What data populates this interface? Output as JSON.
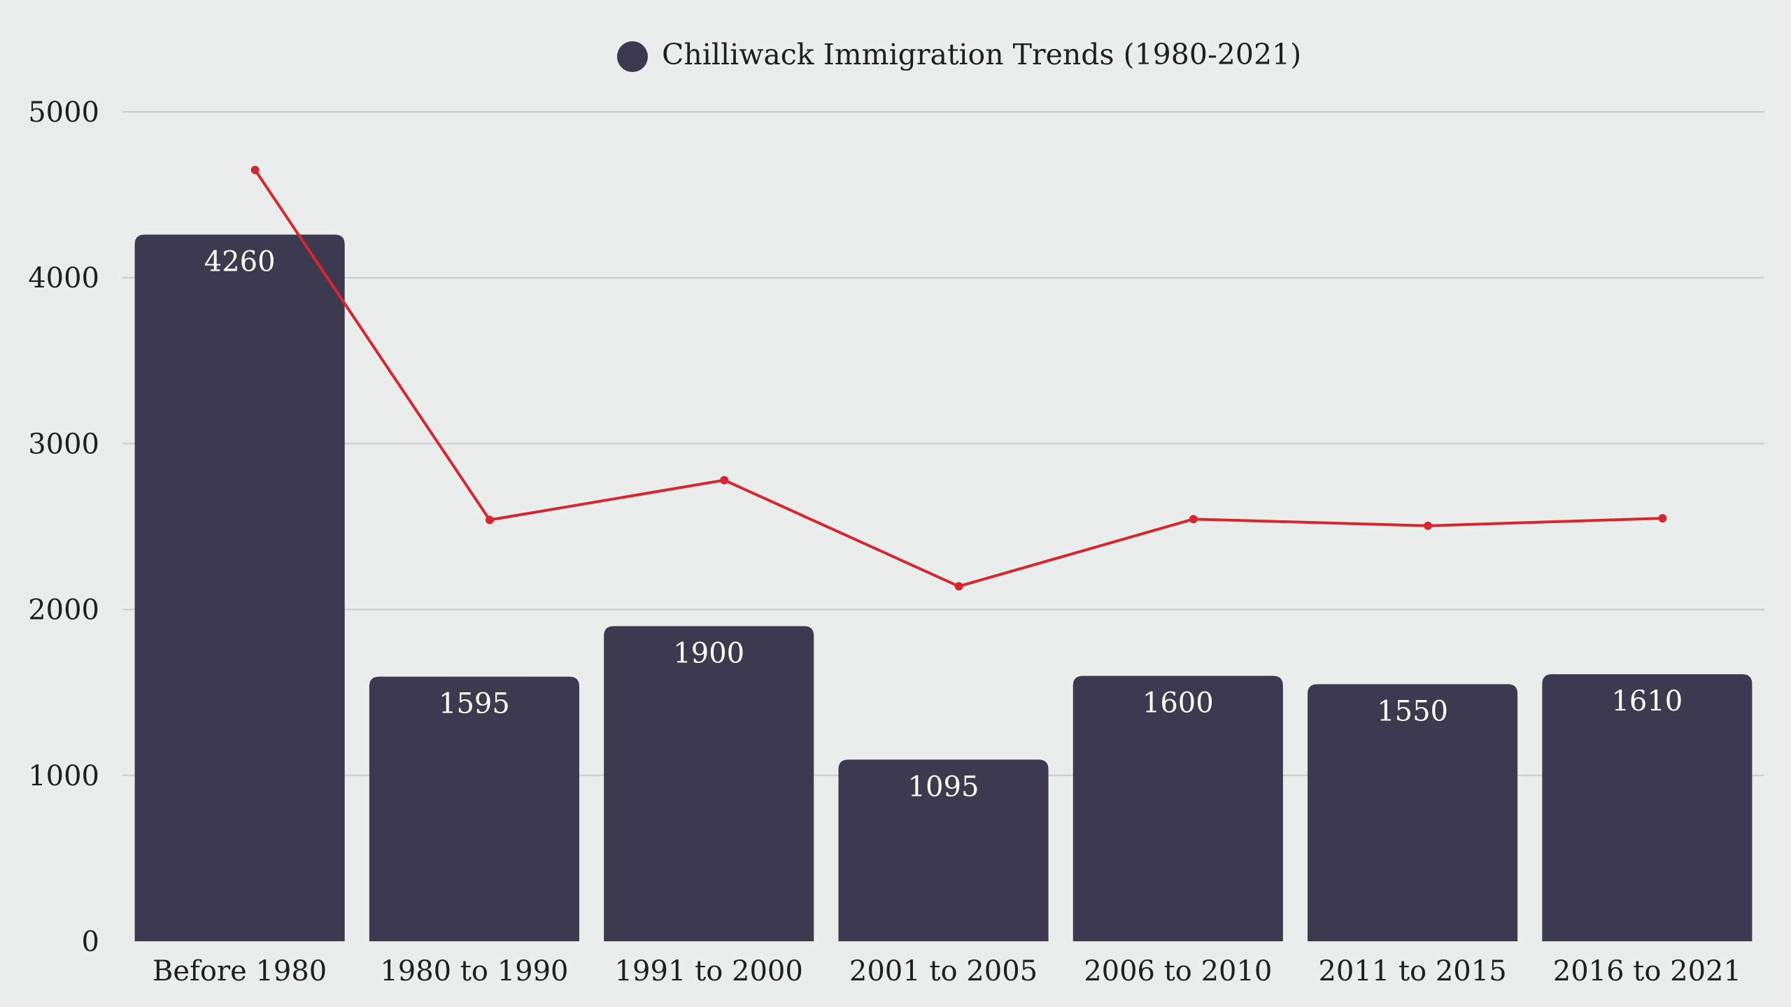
{
  "chart_data": {
    "type": "bar",
    "title": "",
    "xlabel": "",
    "ylabel": "",
    "categories": [
      "Before 1980",
      "1980 to 1990",
      "1991 to 2000",
      "2001 to 2005",
      "2006 to 2010",
      "2011 to 2015",
      "2016 to 2021"
    ],
    "series": [
      {
        "name": "Chilliwack Immigration Trends (1980-2021)",
        "type": "bar",
        "color": "#3d394f",
        "values": [
          4260,
          1595,
          1900,
          1095,
          1600,
          1550,
          1610
        ],
        "show_labels": true
      },
      {
        "type": "line",
        "color": "#d7262e",
        "values": [
          4650,
          2540,
          2780,
          2140,
          2545,
          2505,
          2550
        ],
        "show_labels": false
      }
    ],
    "ylim": [
      0,
      5000
    ],
    "yticks": [
      0,
      1000,
      2000,
      3000,
      4000,
      5000
    ],
    "grid": true,
    "legend": "top-center"
  }
}
